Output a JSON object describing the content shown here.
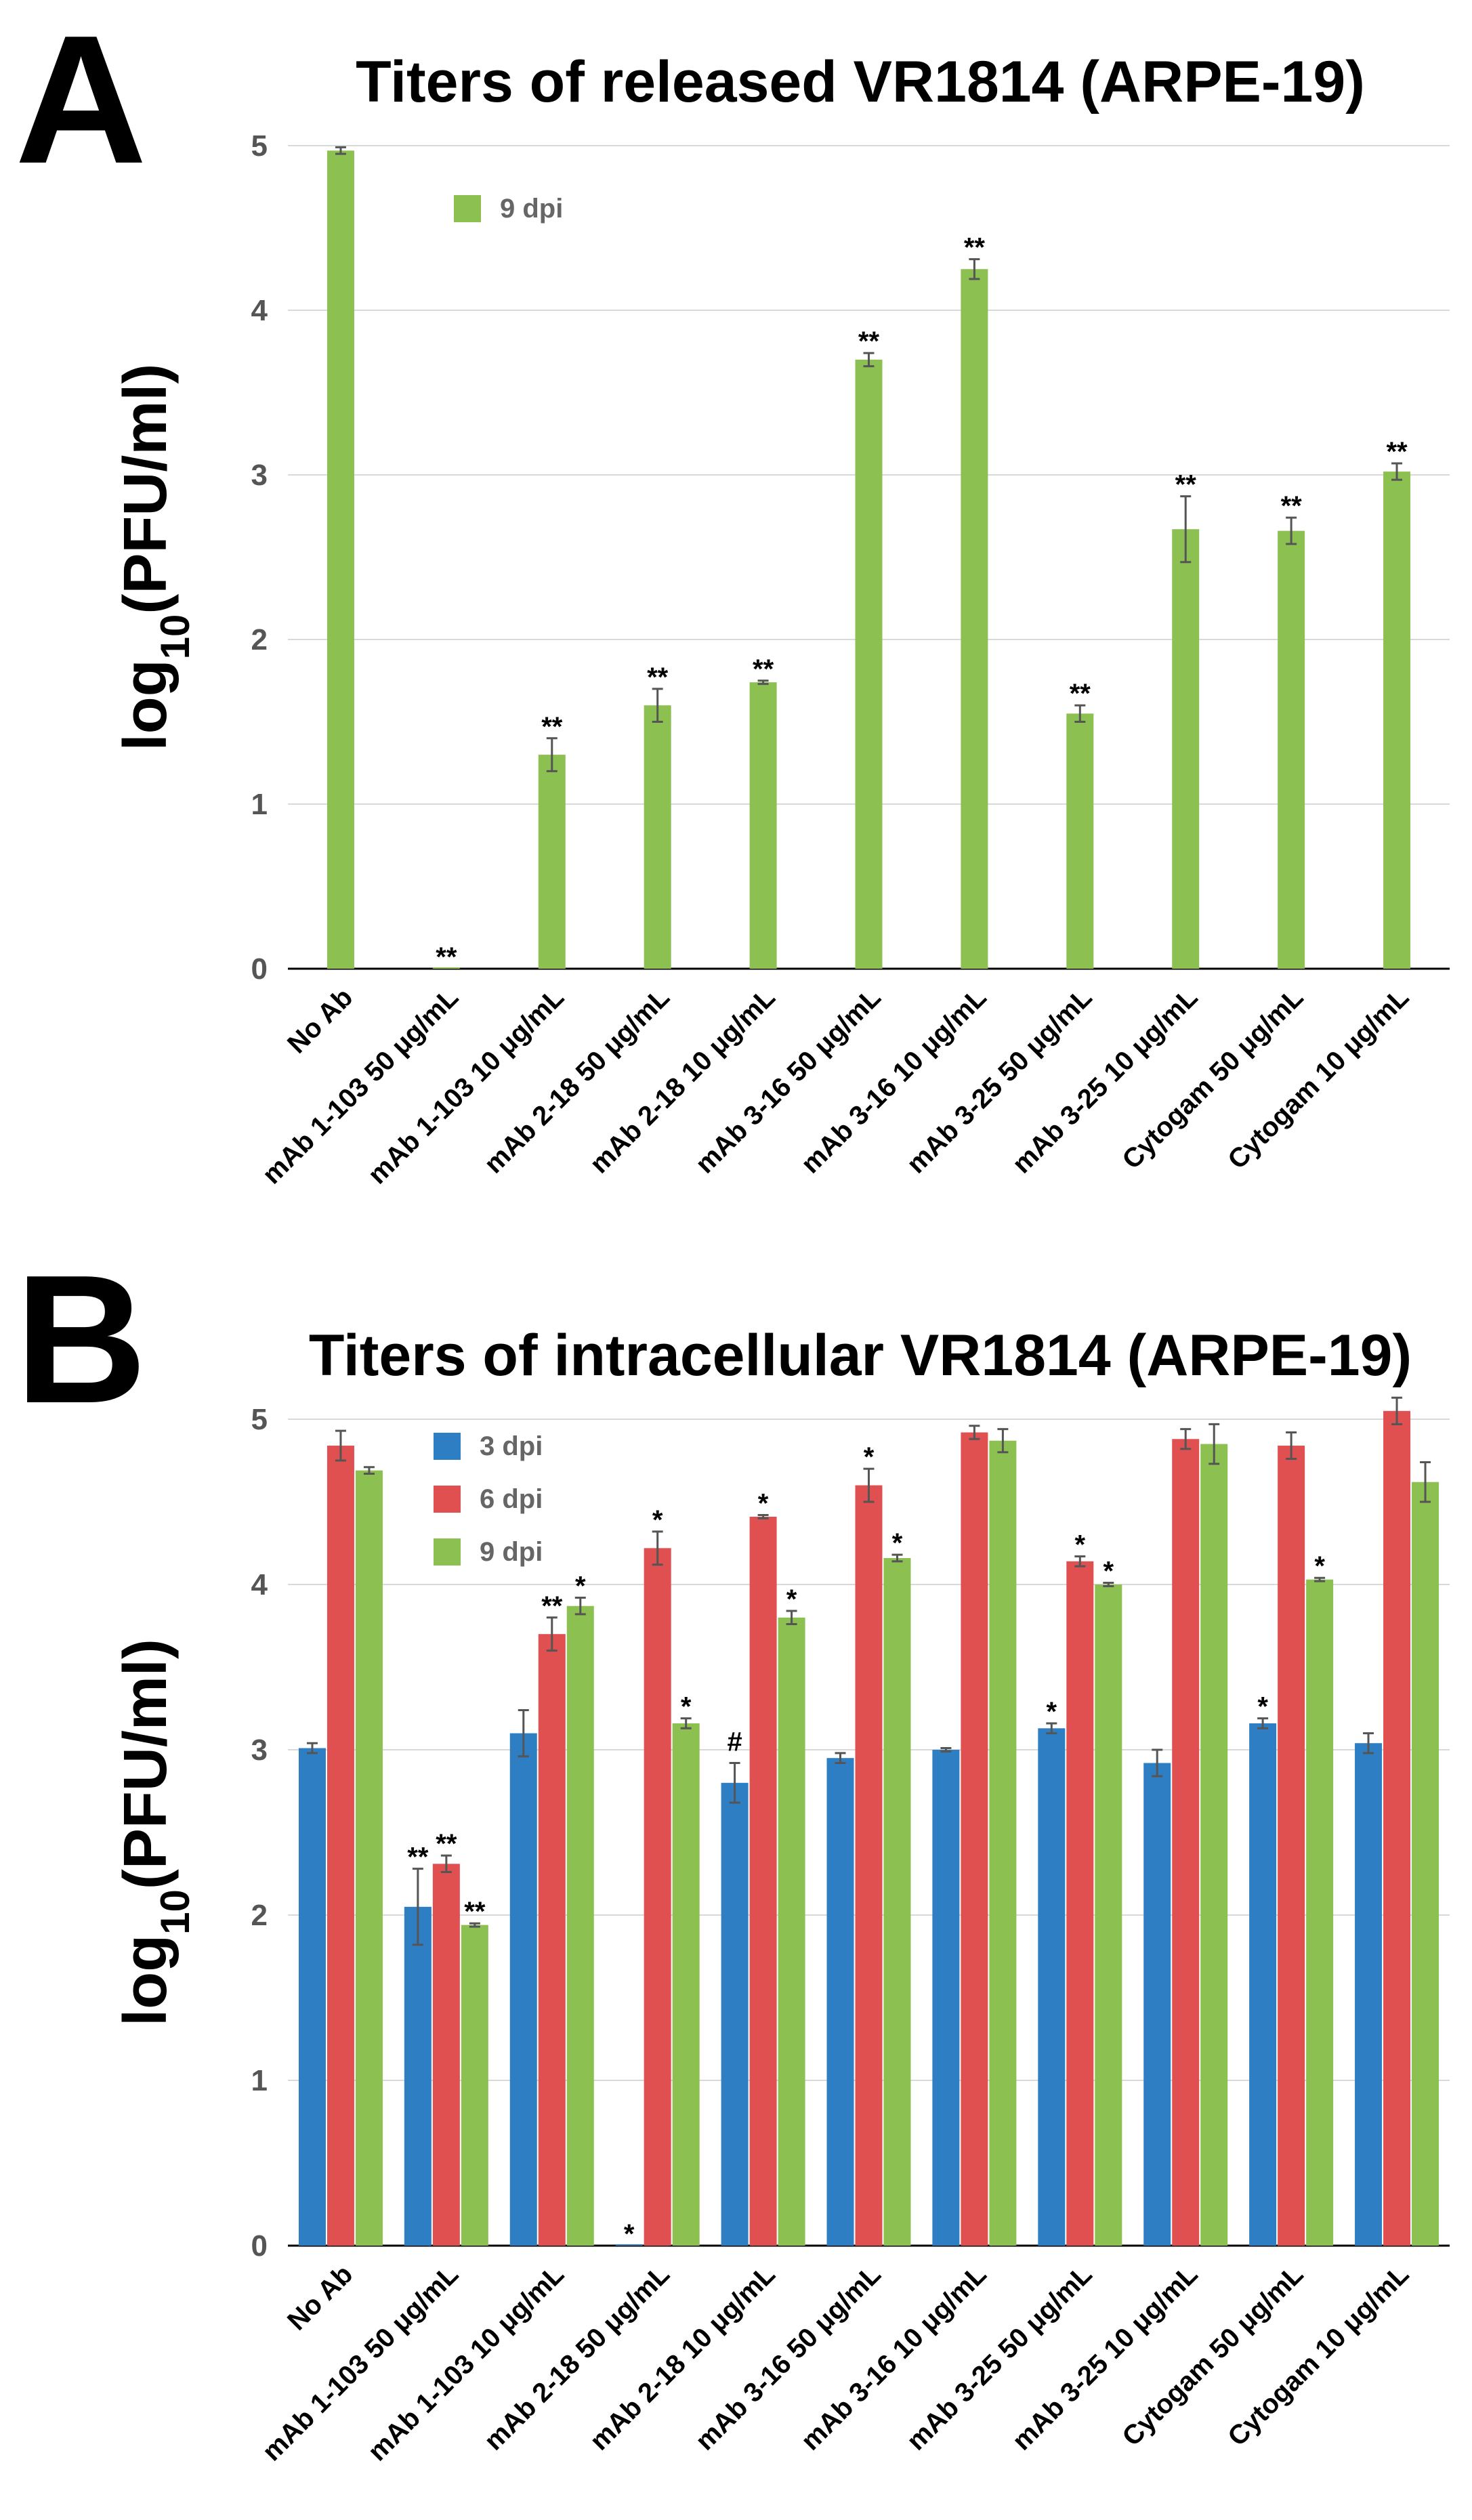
{
  "chart_data": [
    {
      "panel": "A",
      "type": "bar",
      "title": "Titers of released VR1814 (ARPE-19)",
      "xlabel": "",
      "ylabel": "log10(PFU/ml)",
      "ylim": [
        0,
        5
      ],
      "yticks": [
        "0",
        "1",
        "2",
        "3",
        "4",
        "5"
      ],
      "grid": true,
      "legend_position": "top-left",
      "categories": [
        "No Ab",
        "mAb 1-103 50 μg/mL",
        "mAb 1-103 10 μg/mL",
        "mAb 2-18 50 μg/mL",
        "mAb 2-18 10 μg/mL",
        "mAb 3-16 50 μg/mL",
        "mAb 3-16 10 μg/mL",
        "mAb 3-25 50 μg/mL",
        "mAb 3-25 10 μg/mL",
        "Cytogam 50 μg/mL",
        "Cytogam 10 μg/mL"
      ],
      "series": [
        {
          "name": "9 dpi",
          "color": "#8cc152",
          "values": [
            4.97,
            0,
            1.3,
            1.6,
            1.74,
            3.7,
            4.25,
            1.55,
            2.67,
            2.66,
            3.02
          ],
          "errors": [
            0.02,
            0,
            0.1,
            0.1,
            0.01,
            0.04,
            0.06,
            0.05,
            0.2,
            0.08,
            0.05
          ],
          "annotations": [
            "",
            "**",
            "**",
            "**",
            "**",
            "**",
            "**",
            "**",
            "**",
            "**",
            "**"
          ]
        }
      ]
    },
    {
      "panel": "B",
      "type": "bar",
      "title": "Titers of intracellular VR1814 (ARPE-19)",
      "xlabel": "",
      "ylabel": "log10(PFU/ml)",
      "ylim": [
        0,
        5
      ],
      "yticks": [
        "0",
        "1",
        "2",
        "3",
        "4",
        "5"
      ],
      "grid": true,
      "legend_position": "top-left",
      "categories": [
        "No Ab",
        "mAb 1-103 50 μg/mL",
        "mAb 1-103 10 μg/mL",
        "mAb 2-18 50 μg/mL",
        "mAb 2-18 10 μg/mL",
        "mAb 3-16 50 μg/mL",
        "mAb 3-16 10 μg/mL",
        "mAb 3-25 50 μg/mL",
        "mAb 3-25 10 μg/mL",
        "Cytogam 50 μg/mL",
        "Cytogam 10 μg/mL"
      ],
      "series": [
        {
          "name": "3 dpi",
          "color": "#2e7ec4",
          "values": [
            3.01,
            2.05,
            3.1,
            0,
            2.8,
            2.95,
            3.0,
            3.13,
            2.92,
            3.16,
            3.04
          ],
          "errors": [
            0.03,
            0.23,
            0.14,
            0,
            0.12,
            0.03,
            0.01,
            0.03,
            0.08,
            0.03,
            0.06
          ],
          "annotations": [
            "",
            "**",
            "",
            "*",
            "#",
            "",
            "",
            "*",
            "",
            "*",
            ""
          ]
        },
        {
          "name": "6 dpi",
          "color": "#e05050",
          "values": [
            4.84,
            2.31,
            3.7,
            4.22,
            4.41,
            4.6,
            4.92,
            4.14,
            4.88,
            4.84,
            5.05
          ],
          "errors": [
            0.09,
            0.05,
            0.1,
            0.1,
            0.01,
            0.1,
            0.04,
            0.03,
            0.06,
            0.08,
            0.08
          ],
          "annotations": [
            "",
            "**",
            "**",
            "*",
            "*",
            "*",
            "",
            "*",
            "",
            "",
            ""
          ]
        },
        {
          "name": "9 dpi",
          "color": "#8cc152",
          "values": [
            4.69,
            1.94,
            3.87,
            3.16,
            3.8,
            4.16,
            4.87,
            4.0,
            4.85,
            4.03,
            4.62
          ],
          "errors": [
            0.02,
            0.01,
            0.05,
            0.03,
            0.04,
            0.02,
            0.07,
            0.01,
            0.12,
            0.01,
            0.12
          ],
          "annotations": [
            "",
            "**",
            "*",
            "*",
            "*",
            "*",
            "",
            "*",
            "",
            "*",
            ""
          ]
        }
      ]
    }
  ]
}
